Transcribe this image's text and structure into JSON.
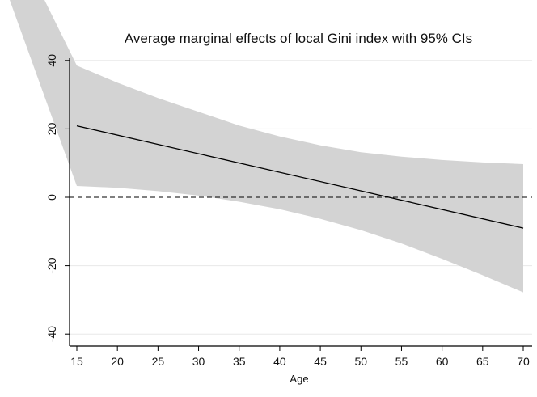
{
  "chart_data": {
    "type": "line",
    "title": "Average marginal effects of local Gini index with 95% CIs",
    "xlabel": "Age",
    "ylabel": "",
    "xlim": [
      14,
      71
    ],
    "ylim": [
      -43,
      43
    ],
    "x_ticks": [
      15,
      20,
      25,
      30,
      35,
      40,
      45,
      50,
      55,
      60,
      65,
      70
    ],
    "y_ticks": [
      -40,
      -20,
      0,
      20,
      40
    ],
    "grid": "horizontal",
    "reference_line": {
      "y": 0,
      "style": "dashed"
    },
    "series": [
      {
        "x": [
          15,
          70
        ],
        "y": [
          20.9,
          -9.0
        ]
      }
    ],
    "confidence_band": {
      "x": [
        15,
        20,
        25,
        30,
        35,
        40,
        45,
        50,
        55,
        60,
        65,
        70
      ],
      "upper": [
        38.5,
        33.5,
        29.0,
        25.0,
        21.0,
        17.8,
        15.2,
        13.2,
        11.9,
        10.9,
        10.2,
        9.7
      ],
      "lower": [
        3.3,
        2.8,
        1.8,
        0.5,
        -1.3,
        -3.5,
        -6.3,
        -9.6,
        -13.5,
        -18.0,
        -22.8,
        -27.8
      ]
    },
    "colors": {
      "band": "#d3d3d3",
      "line": "#000000",
      "grid": "#e8e8e8"
    }
  }
}
